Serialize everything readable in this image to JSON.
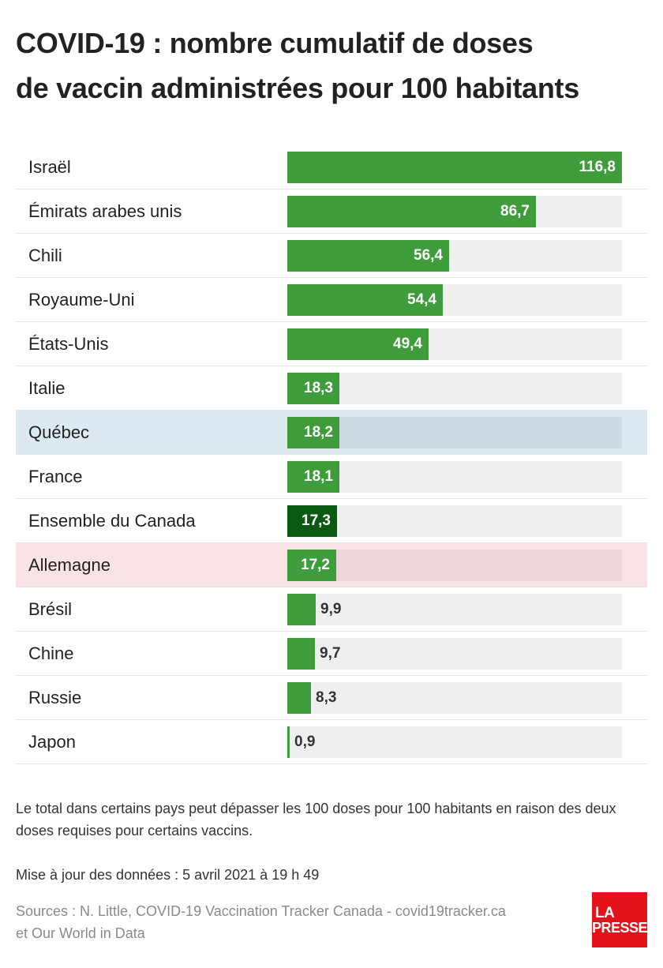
{
  "title_line1": "COVID-19 : nombre cumulatif de doses",
  "title_line2": "de vaccin administrées pour 100 habitants",
  "colors": {
    "bar": "#3f9c3a",
    "bar_emphasis": "#0b5a14",
    "highlight_blue": "#dce9f1",
    "highlight_red": "#fae3e5"
  },
  "chart_data": {
    "type": "bar",
    "orientation": "horizontal",
    "categories": [
      "Israël",
      "Émirats arabes unis",
      "Chili",
      "Royaume-Uni",
      "États-Unis",
      "Italie",
      "Québec",
      "France",
      "Ensemble du Canada",
      "Allemagne",
      "Brésil",
      "Chine",
      "Russie",
      "Japon"
    ],
    "values": [
      116.8,
      86.7,
      56.4,
      54.4,
      49.4,
      18.3,
      18.2,
      18.1,
      17.3,
      17.2,
      9.9,
      9.7,
      8.3,
      0.9
    ],
    "value_labels": [
      "116,8",
      "86,7",
      "56,4",
      "54,4",
      "49,4",
      "18,3",
      "18,2",
      "18,1",
      "17,3",
      "17,2",
      "9,9",
      "9,7",
      "8,3",
      "0,9"
    ],
    "xlim": [
      0,
      116.8
    ],
    "highlight": {
      "Québec": "blue",
      "Allemagne": "red",
      "Ensemble du Canada": "emphasis"
    },
    "grid": false,
    "legend": "none"
  },
  "note": "Le total dans certains pays peut dépasser les 100 doses pour 100 habitants en raison des deux doses requises pour certains vaccins.",
  "updated": "Mise à jour des données : 5 avril 2021 à 19 h 49",
  "sources_line1": "Sources : N. Little, COVID-19 Vaccination Tracker Canada - covid19tracker.ca",
  "sources_line2": "et Our World in Data",
  "logo": {
    "line1": "LA",
    "line2": "PRESSE"
  }
}
